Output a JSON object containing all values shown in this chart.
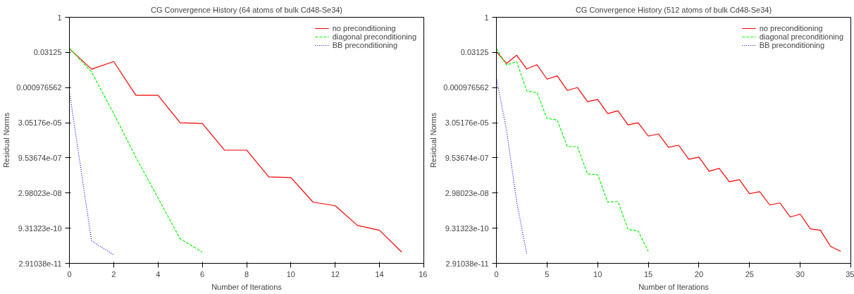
{
  "chart_data": [
    {
      "type": "line",
      "title": "CG Convergence History (64 atoms of bulk Cd48-Se34)",
      "xlabel": "Number of Iterations",
      "ylabel": "Residual Norms",
      "log": "y",
      "grid": false,
      "legend": "top right",
      "xlim": [
        0,
        16
      ],
      "xticks": [
        0,
        2,
        4,
        6,
        8,
        10,
        12,
        14,
        16
      ],
      "ylim": [
        2.9103830456733704e-11,
        1
      ],
      "yticks": [
        1,
        0.03125,
        {
          "value": 0.0009765625,
          "label": "0.000976562"
        },
        {
          "value": 3.0517578125e-05,
          "label": "3.05176e-05"
        },
        {
          "value": 9.5367431640625e-07,
          "label": "9.53674e-07"
        },
        {
          "value": 2.9802322387695312e-08,
          "label": "2.98023e-08"
        },
        {
          "value": 9.313225746154785e-10,
          "label": "9.31323e-10"
        },
        {
          "value": 2.9103830456733704e-11,
          "label": "2.91038e-11"
        }
      ],
      "series": [
        {
          "name": "no preconditioning",
          "color": "#ff0000",
          "line_style": "solid",
          "x": [
            0,
            1,
            2,
            3,
            4,
            5,
            6,
            7,
            8,
            9,
            10,
            11,
            12,
            13,
            14,
            15
          ],
          "values": [
            0.0451,
            0.006,
            0.01278,
            0.000456,
            0.000456,
            3.05e-05,
            2.85e-05,
            2.04e-06,
            2.04e-06,
            1.47e-07,
            1.37e-07,
            1.21e-08,
            8.56e-09,
            1.23e-09,
            7.56e-10,
            8.82e-11
          ]
        },
        {
          "name": "diagonal preconditioning",
          "color": "#00ff00",
          "line_style": "dashed",
          "x": [
            0,
            1,
            2,
            3,
            4,
            5,
            6
          ],
          "values": [
            0.0474,
            0.00449,
            7.51e-05,
            1.02e-06,
            1.83e-08,
            3.29e-10,
            8.82e-11
          ]
        },
        {
          "name": "BB preconditioning",
          "color": "#0000ff",
          "line_style": "dotted",
          "x": [
            0,
            1,
            2
          ],
          "values": [
            0.000644,
            2.67e-10,
            6.69e-11
          ]
        }
      ]
    },
    {
      "type": "line",
      "title": "CG Convergence History (512 atoms of bulk Cd48-Se34)",
      "xlabel": "Number of Iterations",
      "ylabel": "Residual Norms",
      "log": "y",
      "grid": false,
      "legend": "top right",
      "xlim": [
        0,
        35
      ],
      "xticks": [
        0,
        5,
        10,
        15,
        20,
        25,
        30,
        35
      ],
      "ylim": [
        2.9103830456733704e-11,
        1
      ],
      "yticks": [
        1,
        0.03125,
        {
          "value": 0.0009765625,
          "label": "0.000976562"
        },
        {
          "value": 3.0517578125e-05,
          "label": "3.05176e-05"
        },
        {
          "value": 9.5367431640625e-07,
          "label": "9.53674e-07"
        },
        {
          "value": 2.9802322387695312e-08,
          "label": "2.98023e-08"
        },
        {
          "value": 9.313225746154785e-10,
          "label": "9.31323e-10"
        },
        {
          "value": 2.9103830456733704e-11,
          "label": "2.91038e-11"
        }
      ],
      "series": [
        {
          "name": "no preconditioning",
          "color": "#ff0000",
          "line_style": "solid",
          "x": [
            0,
            1,
            2,
            3,
            4,
            5,
            6,
            7,
            8,
            9,
            10,
            11,
            12,
            13,
            14,
            15,
            16,
            17,
            18,
            19,
            20,
            21,
            22,
            23,
            24,
            25,
            26,
            27,
            28,
            29,
            30,
            31,
            32,
            33,
            34
          ],
          "values": [
            0.0335,
            0.0106,
            0.0237,
            0.00613,
            0.00929,
            0.00224,
            0.00309,
            0.00074,
            0.000977,
            0.000244,
            0.0003,
            7.51e-05,
            9.92e-05,
            2.48e-05,
            3.05e-05,
            8.18e-06,
            1.01e-05,
            2.7e-06,
            3.32e-06,
            8.3e-07,
            1.02e-06,
            2.56e-07,
            3.37e-07,
            9.03e-08,
            1.11e-07,
            2.78e-08,
            3.42e-08,
            9.17e-09,
            1.13e-08,
            2.82e-09,
            3.72e-09,
            8.69e-10,
            7.56e-10,
            1.54e-10,
            9.45e-11
          ]
        },
        {
          "name": "diagonal preconditioning",
          "color": "#00ff00",
          "line_style": "dashed",
          "x": [
            0,
            1,
            2,
            3,
            4,
            5,
            6,
            7,
            8,
            9,
            10,
            11,
            12,
            13,
            14,
            15
          ],
          "values": [
            0.0451,
            0.00897,
            0.0127,
            0.000691,
            0.000601,
            4.62e-05,
            4.03e-05,
            2.89e-06,
            2.89e-06,
            1.94e-07,
            1.81e-07,
            1.21e-08,
            1.3e-08,
            8.11e-10,
            7.06e-10,
            9.45e-11
          ]
        },
        {
          "name": "BB preconditioning",
          "color": "#0000ff",
          "line_style": "dotted",
          "x": [
            0,
            1,
            2,
            3
          ],
          "values": [
            0.00258,
            1.42e-05,
            1.3e-08,
            7.17e-11
          ]
        }
      ]
    }
  ]
}
